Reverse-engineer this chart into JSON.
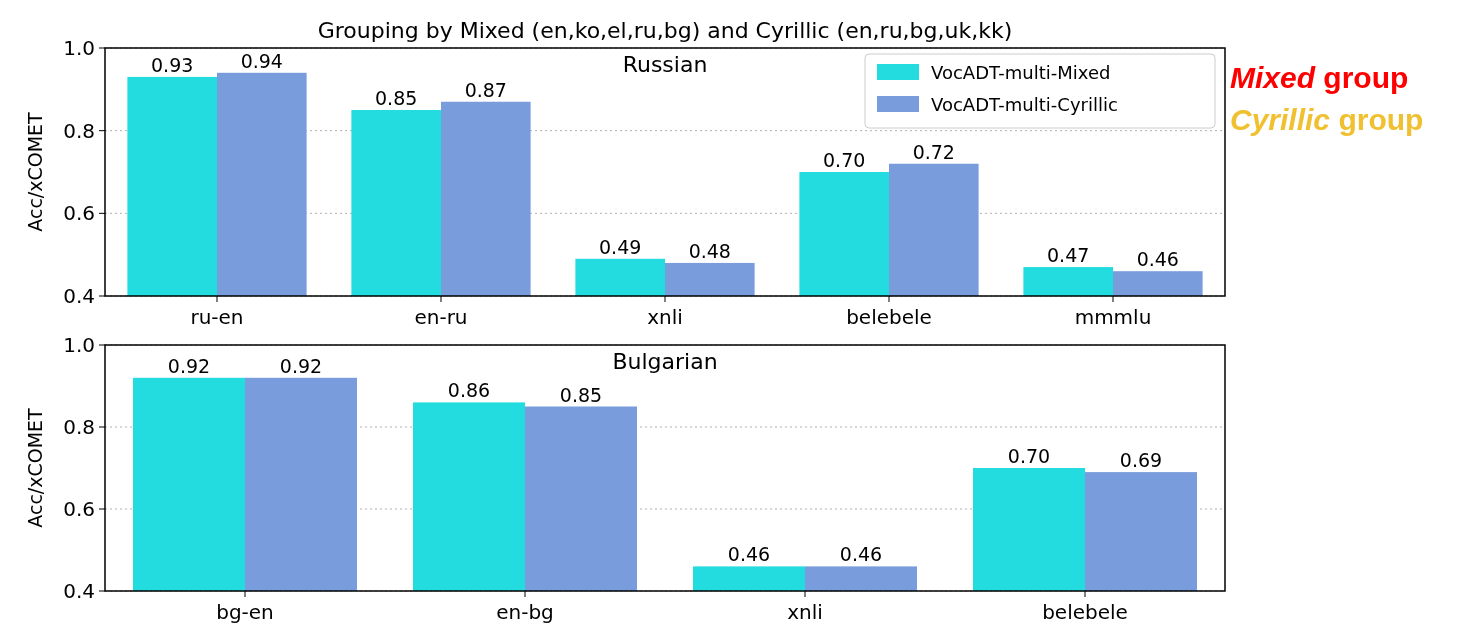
{
  "chart_data": [
    {
      "type": "bar",
      "title": "Grouping by Mixed (en,ko,el,ru,bg) and Cyrillic (en,ru,bg,uk,kk)",
      "subtitle": "Russian",
      "ylabel": "Acc/xCOMET",
      "categories": [
        "ru-en",
        "en-ru",
        "xnli",
        "belebele",
        "mmmlu"
      ],
      "series": [
        {
          "name": "VocADT-multi-Mixed",
          "color": "#22dcdf",
          "values": [
            0.93,
            0.85,
            0.49,
            0.7,
            0.47
          ],
          "value_labels": [
            "0.93",
            "0.85",
            "0.49",
            "0.70",
            "0.47"
          ]
        },
        {
          "name": "VocADT-multi-Cyrillic",
          "color": "#799cdc",
          "values": [
            0.94,
            0.87,
            0.48,
            0.72,
            0.46
          ],
          "value_labels": [
            "0.94",
            "0.87",
            "0.48",
            "0.72",
            "0.46"
          ]
        }
      ],
      "ylim": [
        0.4,
        1.0
      ],
      "yticks": [
        0.4,
        0.6,
        0.8,
        {
          "value": 1.0,
          "label": "1.0"
        }
      ],
      "grid": "y",
      "legend": "top right",
      "annotations": [
        "Mixed group",
        "Cyrillic group"
      ]
    },
    {
      "type": "bar",
      "title": "Bulgarian",
      "ylabel": "Acc/xCOMET",
      "categories": [
        "bg-en",
        "en-bg",
        "xnli",
        "belebele"
      ],
      "series": [
        {
          "color": "#22dcdf",
          "values": [
            0.92,
            0.86,
            0.46,
            0.7
          ],
          "value_labels": [
            "0.92",
            "0.86",
            "0.46",
            "0.70"
          ]
        },
        {
          "color": "#799cdc",
          "values": [
            0.92,
            0.85,
            0.46,
            0.69
          ],
          "value_labels": [
            "0.92",
            "0.85",
            "0.46",
            "0.69"
          ]
        }
      ],
      "ylim": [
        0.4,
        1.0
      ],
      "yticks": [
        0.4,
        0.6,
        0.8,
        {
          "value": 1.0,
          "label": "1.0"
        }
      ],
      "grid": "y"
    }
  ]
}
